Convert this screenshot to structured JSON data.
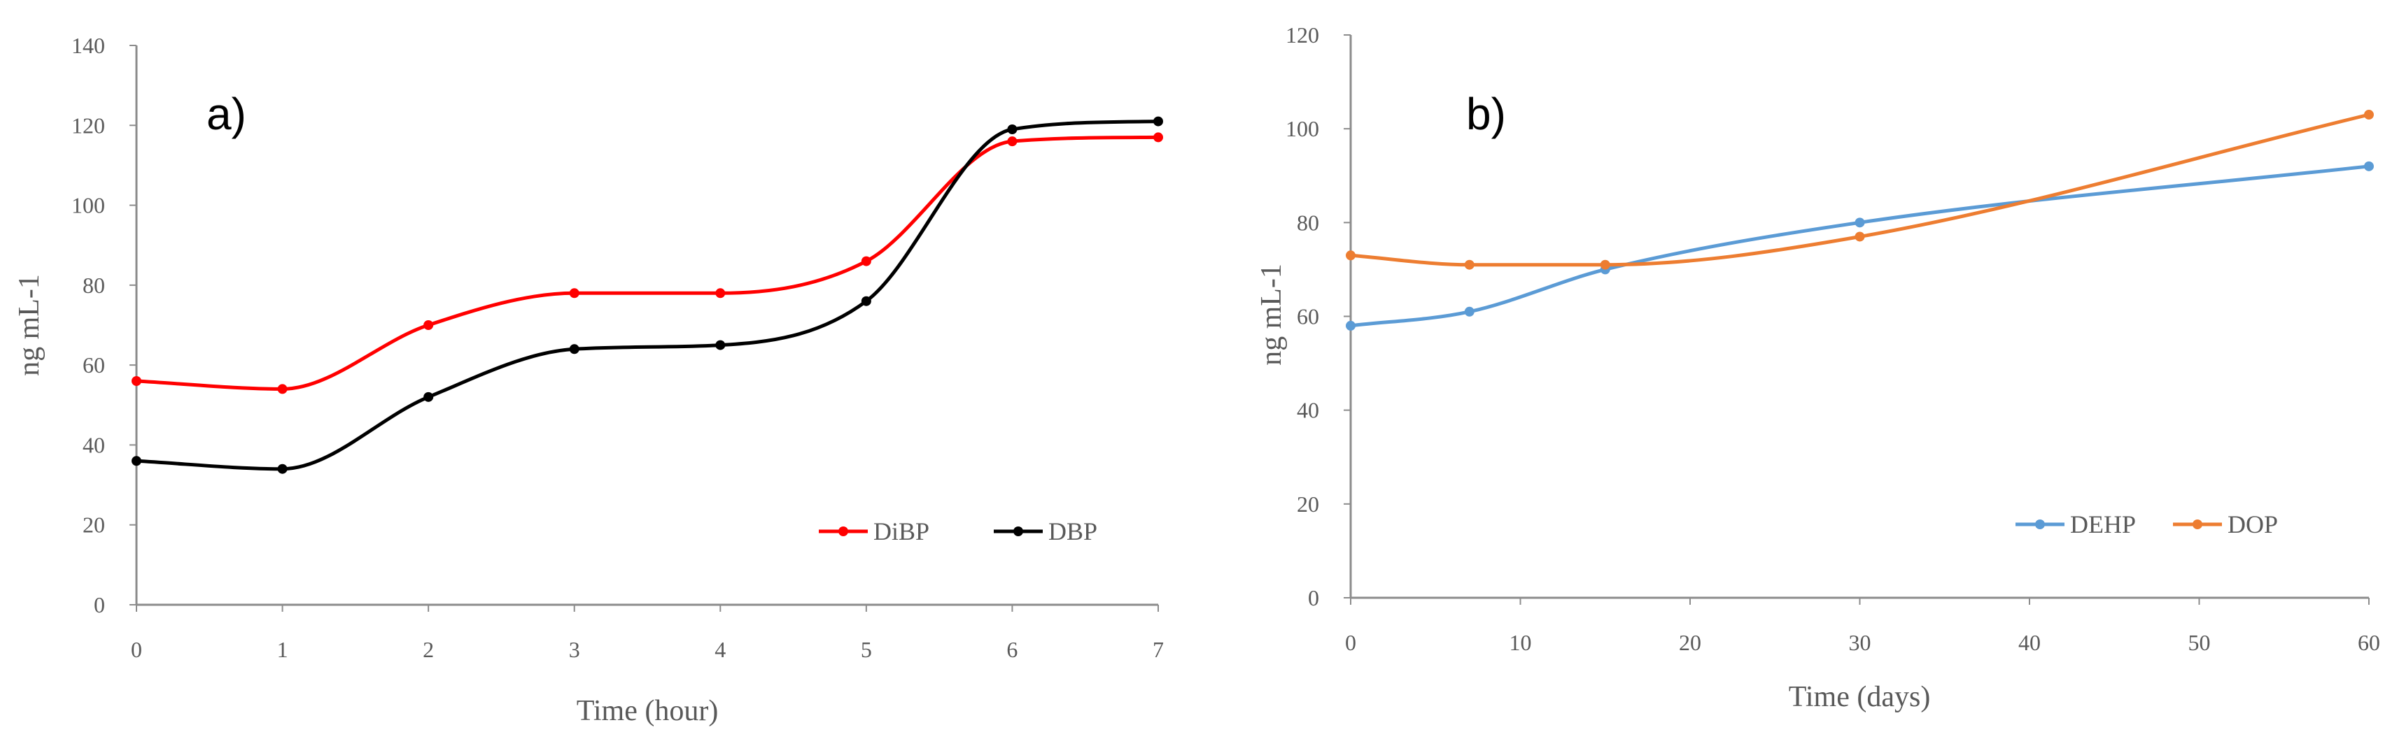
{
  "chart_data": [
    {
      "type": "line",
      "panel_label": "a)",
      "title": "",
      "xlabel": "Time (hour)",
      "ylabel": "ng mL-1",
      "xlim": [
        0,
        7
      ],
      "ylim": [
        0,
        140
      ],
      "x_ticks": [
        0,
        1,
        2,
        3,
        4,
        5,
        6,
        7
      ],
      "y_ticks": [
        0,
        20,
        40,
        60,
        80,
        100,
        120,
        140
      ],
      "grid": false,
      "legend_position": "bottom-right",
      "series": [
        {
          "name": "DiBP",
          "color": "#ff0000",
          "x": [
            0,
            1,
            2,
            3,
            4,
            5,
            6,
            7
          ],
          "values": [
            56,
            54,
            70,
            78,
            78,
            86,
            116,
            117
          ]
        },
        {
          "name": "DBP",
          "color": "#000000",
          "x": [
            0,
            1,
            2,
            3,
            4,
            5,
            6,
            7
          ],
          "values": [
            36,
            34,
            52,
            64,
            65,
            76,
            119,
            121
          ]
        }
      ]
    },
    {
      "type": "line",
      "panel_label": "b)",
      "title": "",
      "xlabel": "Time (days)",
      "ylabel": "ng mL-1",
      "xlim": [
        0,
        60
      ],
      "ylim": [
        0,
        120
      ],
      "x_ticks": [
        0,
        10,
        20,
        30,
        40,
        50,
        60
      ],
      "y_ticks": [
        0,
        20,
        40,
        60,
        80,
        100,
        120
      ],
      "grid": false,
      "legend_position": "bottom-right",
      "series": [
        {
          "name": "DEHP",
          "color": "#5b9bd5",
          "x": [
            0,
            7,
            15,
            30,
            60
          ],
          "values": [
            58,
            61,
            70,
            80,
            92
          ]
        },
        {
          "name": "DOP",
          "color": "#ed7d31",
          "x": [
            0,
            7,
            15,
            30,
            60
          ],
          "values": [
            73,
            71,
            71,
            77,
            103
          ]
        }
      ]
    }
  ]
}
